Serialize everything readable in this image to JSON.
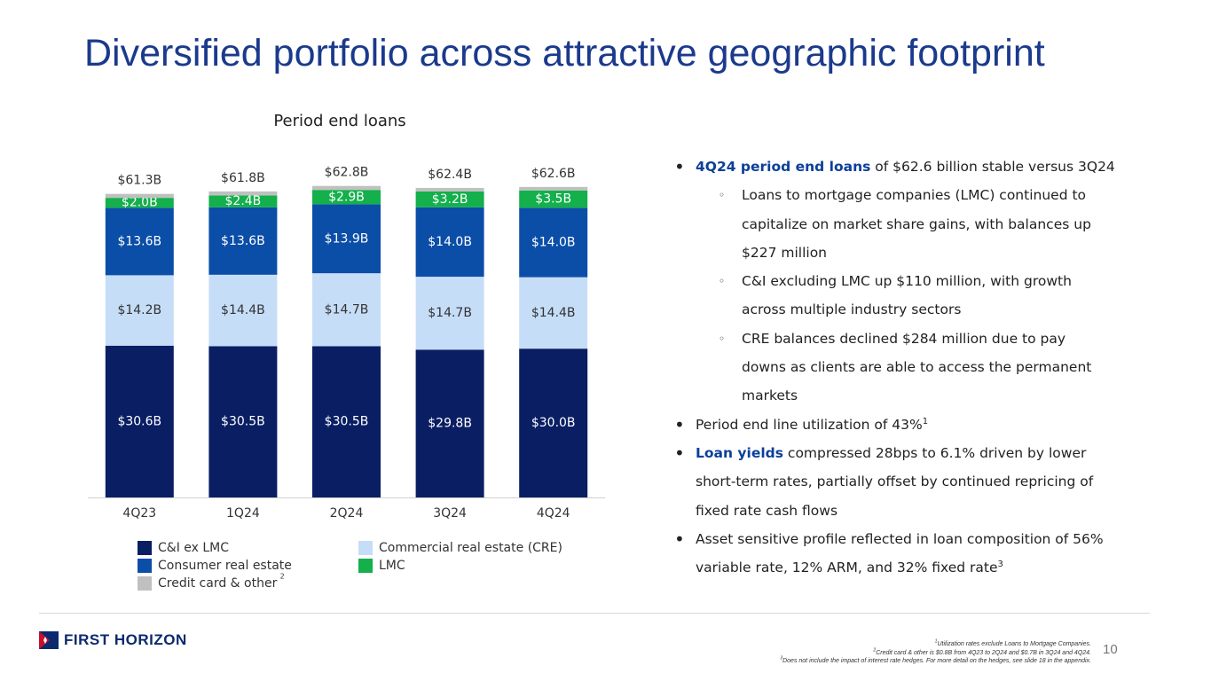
{
  "title": "Diversified portfolio across attractive geographic footprint",
  "chart_data": {
    "type": "stacked_bar",
    "title": "Period end loans",
    "categories": [
      "4Q23",
      "1Q24",
      "2Q24",
      "3Q24",
      "4Q24"
    ],
    "ylim": [
      0,
      64
    ],
    "series": [
      {
        "name": "C&I ex LMC",
        "color": "#0a1e64",
        "label_color": "#ffffff",
        "values": [
          30.6,
          30.5,
          30.5,
          29.8,
          30.0
        ],
        "value_labels": [
          "$30.6B",
          "$30.5B",
          "$30.5B",
          "$29.8B",
          "$30.0B"
        ]
      },
      {
        "name": "Commercial real estate (CRE)",
        "color": "#c6ddf8",
        "label_color": "#333333",
        "values": [
          14.2,
          14.4,
          14.7,
          14.7,
          14.4
        ],
        "value_labels": [
          "$14.2B",
          "$14.4B",
          "$14.7B",
          "$14.7B",
          "$14.4B"
        ]
      },
      {
        "name": "Consumer real estate",
        "color": "#0b4ea8",
        "label_color": "#ffffff",
        "values": [
          13.6,
          13.6,
          13.9,
          14.0,
          14.0
        ],
        "value_labels": [
          "$13.6B",
          "$13.6B",
          "$13.9B",
          "$14.0B",
          "$14.0B"
        ]
      },
      {
        "name": "LMC",
        "color": "#13b04b",
        "label_color": "#ffffff",
        "values": [
          2.0,
          2.4,
          2.9,
          3.2,
          3.5
        ],
        "value_labels": [
          "$2.0B",
          "$2.4B",
          "$2.9B",
          "$3.2B",
          "$3.5B"
        ]
      },
      {
        "name": "Credit card & other",
        "name_note": "2",
        "color": "#c0c0c0",
        "values": [
          0.8,
          0.8,
          0.8,
          0.7,
          0.7
        ]
      }
    ],
    "totals": {
      "values": [
        61.3,
        61.8,
        62.8,
        62.4,
        62.6
      ],
      "value_labels": [
        "$61.3B",
        "$61.8B",
        "$62.8B",
        "$62.4B",
        "$62.6B"
      ]
    }
  },
  "bullets": [
    {
      "bold": "4Q24 period end loans",
      "text": "of $62.6 billion stable versus 3Q24",
      "sub": [
        "Loans to mortgage companies (LMC) continued to capitalize on market share gains, with balances up $227 million",
        "C&I excluding LMC up $110 million, with growth across multiple industry sectors",
        "CRE balances declined $284 million due to pay downs as clients are able to access the permanent markets"
      ]
    },
    {
      "text": "Period end line utilization of 43%",
      "sup": "1"
    },
    {
      "bold": "Loan yields",
      "text": "compressed 28bps to 6.1% driven by lower short-term rates, partially offset by continued repricing of fixed rate cash flows"
    },
    {
      "text": "Asset sensitive profile reflected in loan composition of 56% variable rate, 12% ARM, and 32% fixed rate",
      "sup": "3"
    }
  ],
  "footnotes": [
    {
      "num": "1",
      "text": "Utilization rates exclude Loans to Mortgage Companies."
    },
    {
      "num": "2",
      "text": "Credit card & other is $0.8B from 4Q23 to 2Q24 and $0.7B in 3Q24 and 4Q24."
    },
    {
      "num": "3",
      "text": "Does not include the impact of interest rate hedges. For more detail on the hedges, see slide 18 in the appendix."
    }
  ],
  "logo": "FIRST HORIZON",
  "page_number": "10"
}
